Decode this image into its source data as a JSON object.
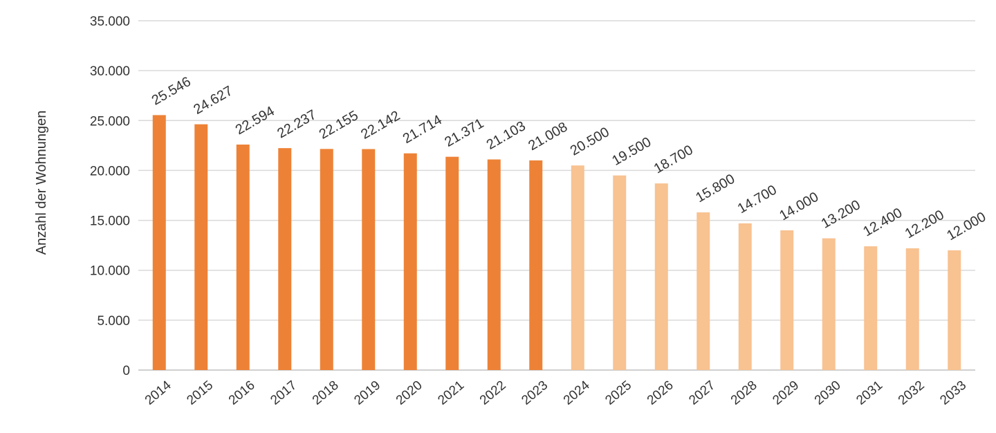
{
  "chart_data": {
    "type": "bar",
    "title": "",
    "xlabel": "",
    "ylabel": "Anzahl der Wohnungen",
    "ylim": [
      0,
      35000
    ],
    "yticks": [
      0,
      5000,
      10000,
      15000,
      20000,
      25000,
      30000,
      35000
    ],
    "ytick_labels": [
      "0",
      "5.000",
      "10.000",
      "15.000",
      "20.000",
      "25.000",
      "30.000",
      "35.000"
    ],
    "grid": true,
    "legend": "none",
    "categories": [
      "2014",
      "2015",
      "2016",
      "2017",
      "2018",
      "2019",
      "2020",
      "2021",
      "2022",
      "2023",
      "2024",
      "2025",
      "2026",
      "2027",
      "2028",
      "2029",
      "2030",
      "2031",
      "2032",
      "2033"
    ],
    "values": [
      25546,
      24627,
      22594,
      22237,
      22155,
      22142,
      21714,
      21371,
      21103,
      21008,
      20500,
      19500,
      18700,
      15800,
      14700,
      14000,
      13200,
      12400,
      12200,
      12000
    ],
    "value_labels": [
      "25.546",
      "24.627",
      "22.594",
      "22.237",
      "22.155",
      "22.142",
      "21.714",
      "21.371",
      "21.103",
      "21.008",
      "20.500",
      "19.500",
      "18.700",
      "15.800",
      "14.700",
      "14.000",
      "13.200",
      "12.400",
      "12.200",
      "12.000"
    ],
    "bar_kind": [
      "actual",
      "actual",
      "actual",
      "actual",
      "actual",
      "actual",
      "actual",
      "actual",
      "actual",
      "actual",
      "forecast",
      "forecast",
      "forecast",
      "forecast",
      "forecast",
      "forecast",
      "forecast",
      "forecast",
      "forecast",
      "forecast"
    ],
    "colors": {
      "actual": "#ed8236",
      "forecast": "#f8c291",
      "grid": "#d9d9d9",
      "text": "#333333"
    }
  }
}
